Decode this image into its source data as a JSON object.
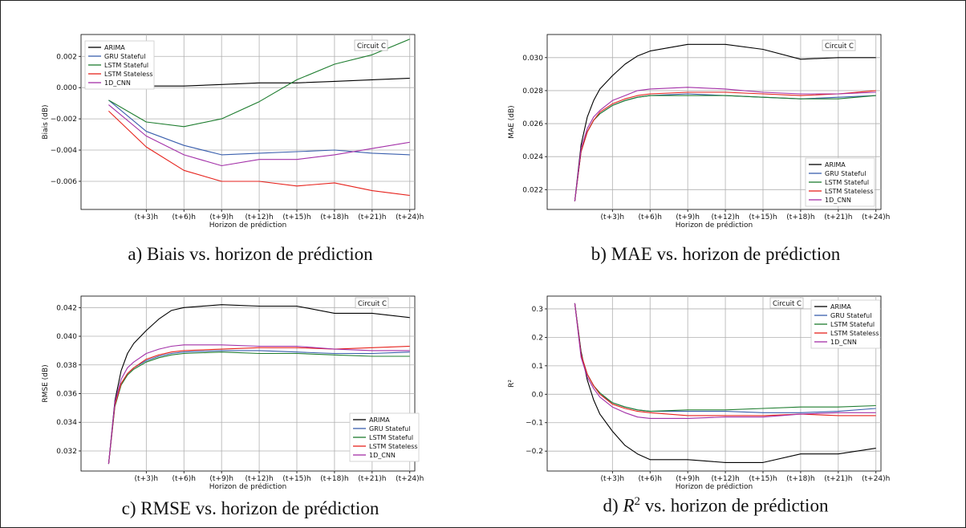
{
  "x_ticks": [
    "(t+3)h",
    "(t+6)h",
    "(t+9)h",
    "(t+12)h",
    "(t+15)h",
    "(t+18)h",
    "(t+21)h",
    "(t+24)h"
  ],
  "xlabel": "Horizon de prédiction",
  "series_names": [
    "ARIMA",
    "GRU Stateful",
    "LSTM Stateful",
    "LSTM Stateless",
    "1D_CNN"
  ],
  "series_colors": {
    "ARIMA": "#000000",
    "GRU Stateful": "#3a5fad",
    "LSTM Stateful": "#1e7d2f",
    "LSTM Stateless": "#e6221c",
    "1D_CNN": "#a330a8"
  },
  "captions": {
    "a": "a) Biais vs. horizon de prédiction",
    "b": "b) MAE vs. horizon de prédiction",
    "c": "c) RMSE vs. horizon de prédiction",
    "d_prefix": "d) ",
    "d_symbol": "R",
    "d_exp": "2",
    "d_suffix": " vs. horizon de prédiction"
  },
  "chart_data": [
    {
      "id": "a",
      "type": "line",
      "circuit_label": "Circuit C",
      "legend_position": "upper-left",
      "xlabel": "Horizon de prédiction",
      "ylabel": "Biais (dB)",
      "ylim": [
        -0.0078,
        0.0034
      ],
      "yticks": [
        -0.006,
        -0.004,
        -0.002,
        0.0,
        0.002
      ],
      "ytick_labels": [
        "−0.006",
        "−0.004",
        "−0.002",
        "0.000",
        "0.002"
      ],
      "x_hours": [
        0,
        3,
        6,
        9,
        12,
        15,
        18,
        21,
        24
      ],
      "series": [
        {
          "name": "ARIMA",
          "values": [
            0.0,
            0.0001,
            0.0001,
            0.0002,
            0.0003,
            0.0003,
            0.0004,
            0.0005,
            0.0006
          ]
        },
        {
          "name": "GRU Stateful",
          "values": [
            -0.0008,
            -0.0028,
            -0.0037,
            -0.0043,
            -0.0042,
            -0.0041,
            -0.004,
            -0.0042,
            -0.0043
          ]
        },
        {
          "name": "LSTM Stateful",
          "values": [
            -0.0008,
            -0.0022,
            -0.0025,
            -0.002,
            -0.0009,
            0.0005,
            0.0015,
            0.0021,
            0.0031
          ]
        },
        {
          "name": "LSTM Stateless",
          "values": [
            -0.0015,
            -0.0038,
            -0.0053,
            -0.006,
            -0.006,
            -0.0063,
            -0.0061,
            -0.0066,
            -0.0069
          ]
        },
        {
          "name": "1D_CNN",
          "values": [
            -0.0011,
            -0.0031,
            -0.0043,
            -0.005,
            -0.0046,
            -0.0046,
            -0.0043,
            -0.0039,
            -0.0035
          ]
        }
      ]
    },
    {
      "id": "b",
      "type": "line",
      "circuit_label": "Circuit C",
      "legend_position": "lower-right",
      "xlabel": "Horizon de prédiction",
      "ylabel": "MAE (dB)",
      "ylim": [
        0.0208,
        0.0314
      ],
      "yticks": [
        0.022,
        0.024,
        0.026,
        0.028,
        0.03
      ],
      "ytick_labels": [
        "0.022",
        "0.024",
        "0.026",
        "0.028",
        "0.030"
      ],
      "x_hours": [
        0,
        0.5,
        1,
        1.5,
        2,
        3,
        4,
        5,
        6,
        9,
        12,
        15,
        18,
        21,
        24
      ],
      "series": [
        {
          "name": "ARIMA",
          "values": [
            0.0213,
            0.0247,
            0.0264,
            0.0274,
            0.0281,
            0.0289,
            0.0296,
            0.0301,
            0.0304,
            0.0308,
            0.0308,
            0.0305,
            0.0299,
            0.03,
            0.03
          ]
        },
        {
          "name": "GRU Stateful",
          "values": [
            0.0213,
            0.0243,
            0.0255,
            0.0262,
            0.0266,
            0.0271,
            0.0274,
            0.0276,
            0.0277,
            0.0278,
            0.0277,
            0.0276,
            0.0275,
            0.0276,
            0.0277
          ]
        },
        {
          "name": "LSTM Stateful",
          "values": [
            0.0213,
            0.0243,
            0.0255,
            0.0262,
            0.0266,
            0.0271,
            0.0274,
            0.0276,
            0.0277,
            0.0277,
            0.0277,
            0.0276,
            0.0275,
            0.0275,
            0.0277
          ]
        },
        {
          "name": "LSTM Stateless",
          "values": [
            0.0213,
            0.0243,
            0.0255,
            0.0262,
            0.0267,
            0.0272,
            0.0275,
            0.0277,
            0.0278,
            0.0279,
            0.0279,
            0.0278,
            0.0277,
            0.0278,
            0.028
          ]
        },
        {
          "name": "1D_CNN",
          "values": [
            0.0213,
            0.0245,
            0.0257,
            0.0264,
            0.0268,
            0.0274,
            0.0277,
            0.028,
            0.0281,
            0.0282,
            0.0281,
            0.0279,
            0.0278,
            0.0278,
            0.0279
          ]
        }
      ]
    },
    {
      "id": "c",
      "type": "line",
      "circuit_label": "Circuit C",
      "legend_position": "lower-right",
      "xlabel": "Horizon de prédiction",
      "ylabel": "RMSE (dB)",
      "ylim": [
        0.0306,
        0.0428
      ],
      "yticks": [
        0.032,
        0.034,
        0.036,
        0.038,
        0.04,
        0.042
      ],
      "ytick_labels": [
        "0.032",
        "0.034",
        "0.036",
        "0.038",
        "0.040",
        "0.042"
      ],
      "x_hours": [
        0,
        0.5,
        1,
        1.5,
        2,
        3,
        4,
        5,
        6,
        9,
        12,
        15,
        18,
        21,
        24
      ],
      "series": [
        {
          "name": "ARIMA",
          "values": [
            0.0311,
            0.0355,
            0.0376,
            0.0388,
            0.0395,
            0.0404,
            0.0412,
            0.0418,
            0.042,
            0.0422,
            0.0421,
            0.0421,
            0.0416,
            0.0416,
            0.0413
          ]
        },
        {
          "name": "GRU Stateful",
          "values": [
            0.0311,
            0.0352,
            0.0367,
            0.0374,
            0.0378,
            0.0383,
            0.0386,
            0.0388,
            0.0389,
            0.039,
            0.039,
            0.0389,
            0.0388,
            0.0388,
            0.0389
          ]
        },
        {
          "name": "LSTM Stateful",
          "values": [
            0.0311,
            0.0351,
            0.0366,
            0.0373,
            0.0377,
            0.0382,
            0.0385,
            0.0387,
            0.0388,
            0.0389,
            0.0388,
            0.0388,
            0.0387,
            0.0386,
            0.0386
          ]
        },
        {
          "name": "LSTM Stateless",
          "values": [
            0.0311,
            0.0352,
            0.0367,
            0.0374,
            0.0378,
            0.0384,
            0.0387,
            0.0389,
            0.039,
            0.0391,
            0.0392,
            0.0392,
            0.0391,
            0.0392,
            0.0393
          ]
        },
        {
          "name": "1D_CNN",
          "values": [
            0.0311,
            0.0354,
            0.037,
            0.0378,
            0.0382,
            0.0388,
            0.0391,
            0.0393,
            0.0394,
            0.0394,
            0.0393,
            0.0393,
            0.0391,
            0.039,
            0.039
          ]
        }
      ]
    },
    {
      "id": "d",
      "type": "line",
      "circuit_label": "Circuit C",
      "legend_position": "upper-right",
      "xlabel": "Horizon de prédiction",
      "ylabel": "R²",
      "ylim": [
        -0.27,
        0.345
      ],
      "yticks": [
        -0.2,
        -0.1,
        0.0,
        0.1,
        0.2,
        0.3
      ],
      "ytick_labels": [
        "−0.2",
        "−0.1",
        "0.0",
        "0.1",
        "0.2",
        "0.3"
      ],
      "x_hours": [
        0,
        0.5,
        1,
        1.5,
        2,
        3,
        4,
        5,
        6,
        9,
        12,
        15,
        18,
        21,
        24
      ],
      "series": [
        {
          "name": "ARIMA",
          "values": [
            0.32,
            0.15,
            0.05,
            -0.02,
            -0.07,
            -0.13,
            -0.18,
            -0.21,
            -0.23,
            -0.23,
            -0.24,
            -0.24,
            -0.21,
            -0.21,
            -0.19
          ]
        },
        {
          "name": "GRU Stateful",
          "values": [
            0.32,
            0.14,
            0.07,
            0.03,
            0.0,
            -0.03,
            -0.045,
            -0.055,
            -0.06,
            -0.06,
            -0.06,
            -0.065,
            -0.065,
            -0.06,
            -0.05
          ]
        },
        {
          "name": "LSTM Stateful",
          "values": [
            0.32,
            0.14,
            0.07,
            0.03,
            0.005,
            -0.03,
            -0.045,
            -0.055,
            -0.06,
            -0.055,
            -0.055,
            -0.05,
            -0.045,
            -0.045,
            -0.04
          ]
        },
        {
          "name": "LSTM Stateless",
          "values": [
            0.32,
            0.14,
            0.07,
            0.03,
            0.0,
            -0.035,
            -0.05,
            -0.06,
            -0.065,
            -0.075,
            -0.075,
            -0.075,
            -0.07,
            -0.075,
            -0.075
          ]
        },
        {
          "name": "1D_CNN",
          "values": [
            0.32,
            0.13,
            0.06,
            0.02,
            -0.01,
            -0.045,
            -0.065,
            -0.08,
            -0.085,
            -0.085,
            -0.08,
            -0.08,
            -0.07,
            -0.065,
            -0.065
          ]
        }
      ]
    }
  ]
}
